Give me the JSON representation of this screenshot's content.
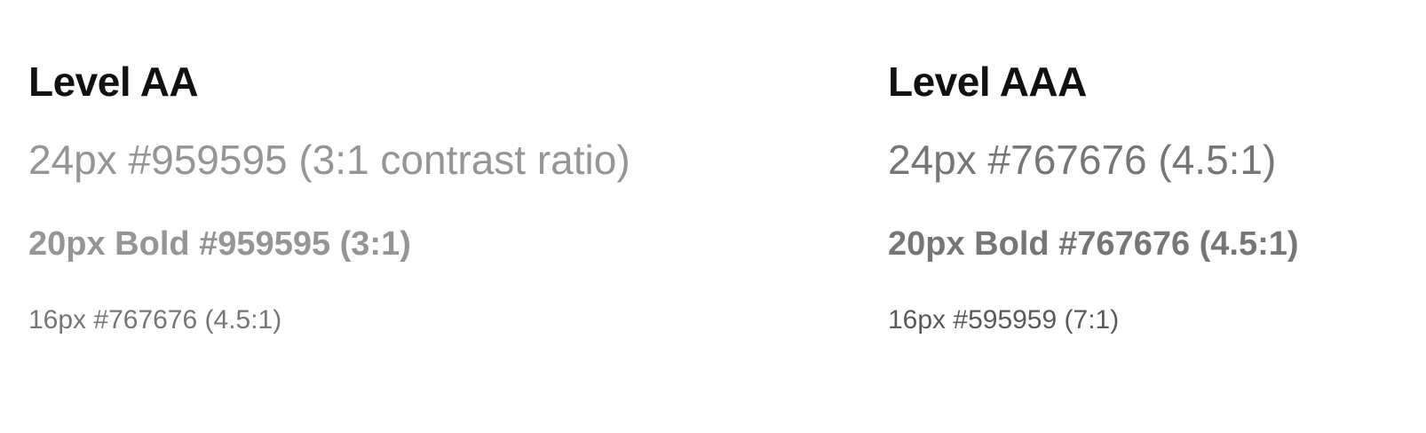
{
  "colors": {
    "heading": "#111111",
    "gray_959595": "#959595",
    "gray_767676": "#767676",
    "gray_595959": "#595959",
    "background": "#ffffff"
  },
  "level_aa": {
    "title": "Level AA",
    "sample_24px": "24px #959595 (3:1 contrast ratio)",
    "sample_20px_bold": "20px Bold #959595 (3:1)",
    "sample_16px": "16px #767676 (4.5:1)"
  },
  "level_aaa": {
    "title": "Level AAA",
    "sample_24px": "24px #767676 (4.5:1)",
    "sample_20px_bold": "20px Bold #767676 (4.5:1)",
    "sample_16px": "16px #595959 (7:1)"
  }
}
